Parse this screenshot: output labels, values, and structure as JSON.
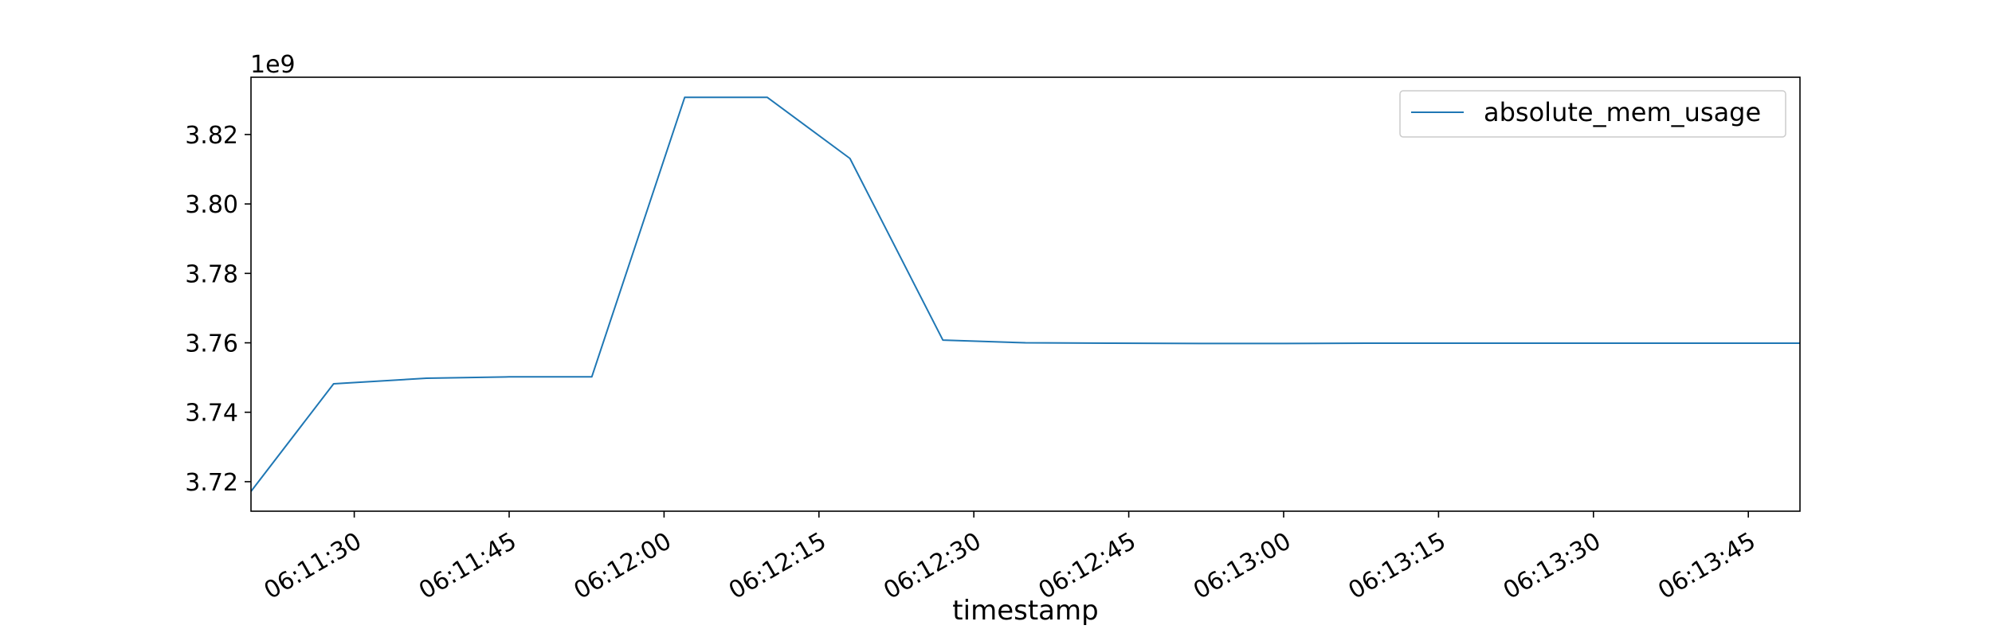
{
  "chart_data": {
    "type": "line",
    "title": "",
    "xlabel": "timestamp",
    "ylabel": "",
    "y_offset_text": "1e9",
    "xlim": [
      "06:11:20",
      "06:13:50"
    ],
    "ylim": [
      3.7115,
      3.8365
    ],
    "x_ticks": [
      "06:11:30",
      "06:11:45",
      "06:12:00",
      "06:12:15",
      "06:12:30",
      "06:12:45",
      "06:13:00",
      "06:13:15",
      "06:13:30",
      "06:13:45"
    ],
    "y_ticks": [
      "3.72",
      "3.74",
      "3.76",
      "3.78",
      "3.80",
      "3.82"
    ],
    "y_tick_values": [
      3.72,
      3.74,
      3.76,
      3.78,
      3.8,
      3.82
    ],
    "grid": false,
    "legend_position": "top-right",
    "series": [
      {
        "name": "absolute_mem_usage",
        "color": "#1f77b4",
        "x": [
          "06:11:20",
          "06:11:28",
          "06:11:37",
          "06:11:45",
          "06:11:53",
          "06:12:02",
          "06:12:10",
          "06:12:18",
          "06:12:27",
          "06:12:35",
          "06:12:43",
          "06:12:52",
          "06:13:00",
          "06:13:08",
          "06:13:17",
          "06:13:25",
          "06:13:33",
          "06:13:42",
          "06:13:50"
        ],
        "values": [
          3.7172,
          3.7482,
          3.7498,
          3.7502,
          3.7502,
          3.8307,
          3.8307,
          3.8131,
          3.7608,
          3.76,
          3.7599,
          3.7598,
          3.7598,
          3.7599,
          3.7599,
          3.7599,
          3.7599,
          3.7599,
          3.7599
        ]
      }
    ]
  }
}
